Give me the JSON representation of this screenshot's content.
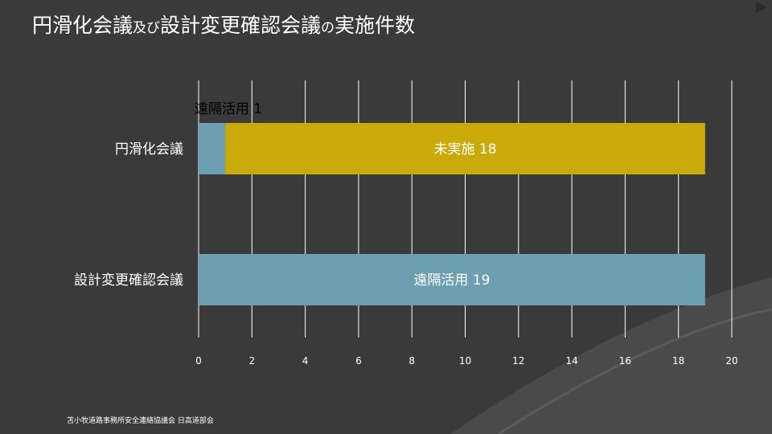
{
  "slide": {
    "title_parts": [
      {
        "text": "円滑化会議",
        "size": "big"
      },
      {
        "text": "及び",
        "size": "small"
      },
      {
        "text": "設計変更確認会議",
        "size": "big"
      },
      {
        "text": "の",
        "size": "small"
      },
      {
        "text": "実施件数",
        "size": "big"
      }
    ],
    "footer": "苫小牧道路事務所安全連絡協議会 日高道部会"
  },
  "colors": {
    "background": "#3a3a3a",
    "remote": "#6c9fb0",
    "not_held": "#c9aa0a",
    "grid": "#ffffff",
    "text": "#ffffff",
    "text_dark": "#000000"
  },
  "chart_data": {
    "type": "bar",
    "orientation": "horizontal",
    "stacked": true,
    "categories": [
      "円滑化会議",
      "設計変更確認会議"
    ],
    "series": [
      {
        "key": "remote",
        "values": [
          1,
          19
        ],
        "labels": [
          "遠隔活用 1",
          "遠隔活用 19"
        ],
        "color": "#6c9fb0"
      },
      {
        "key": "not_held",
        "values": [
          18,
          0
        ],
        "labels": [
          "未実施 18",
          ""
        ],
        "color": "#c9aa0a"
      }
    ],
    "xlim": [
      0,
      20
    ],
    "xticks": [
      0,
      2,
      4,
      6,
      8,
      10,
      12,
      14,
      16,
      18,
      20
    ],
    "grid": true,
    "legend": "none"
  }
}
